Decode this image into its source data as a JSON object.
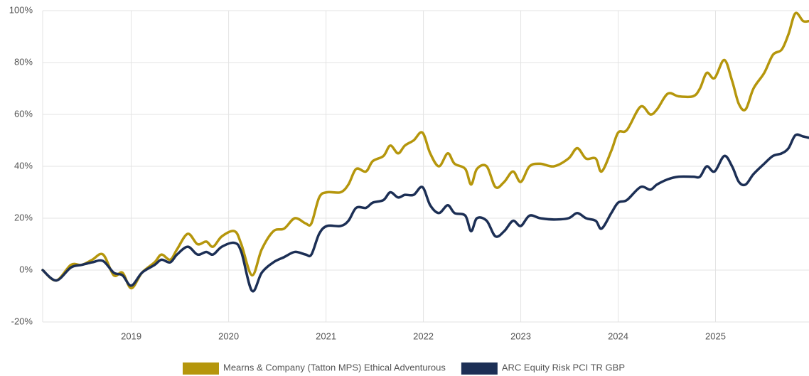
{
  "chart_data": {
    "type": "line",
    "x": [
      2018.09,
      2018.23,
      2018.38,
      2018.49,
      2018.6,
      2018.71,
      2018.82,
      2018.91,
      2019.0,
      2019.11,
      2019.24,
      2019.31,
      2019.4,
      2019.47,
      2019.58,
      2019.68,
      2019.77,
      2019.84,
      2019.93,
      2020.06,
      2020.13,
      2020.24,
      2020.34,
      2020.46,
      2020.57,
      2020.68,
      2020.79,
      2020.85,
      2020.93,
      2021.01,
      2021.15,
      2021.23,
      2021.31,
      2021.41,
      2021.48,
      2021.59,
      2021.66,
      2021.74,
      2021.81,
      2021.9,
      2021.99,
      2022.07,
      2022.16,
      2022.25,
      2022.32,
      2022.43,
      2022.49,
      2022.55,
      2022.65,
      2022.74,
      2022.83,
      2022.92,
      2023.0,
      2023.09,
      2023.2,
      2023.34,
      2023.49,
      2023.58,
      2023.67,
      2023.77,
      2023.83,
      2023.93,
      2024.0,
      2024.09,
      2024.23,
      2024.33,
      2024.4,
      2024.51,
      2024.62,
      2024.77,
      2024.84,
      2024.91,
      2024.99,
      2025.09,
      2025.17,
      2025.24,
      2025.31,
      2025.39,
      2025.5,
      2025.59,
      2025.68,
      2025.75,
      2025.82,
      2025.9,
      2025.96
    ],
    "series": [
      {
        "name": "Mearns & Company (Tatton MPS) Ethical Adventurous",
        "color": "#b5960c",
        "values": [
          0,
          -4,
          2,
          2,
          4,
          6,
          -2,
          -1,
          -7,
          -1,
          3,
          6,
          4,
          8,
          14,
          10,
          11,
          9,
          13,
          15,
          10,
          -2,
          8,
          15,
          16,
          20,
          18,
          18,
          28,
          30,
          30,
          33,
          39,
          38,
          42,
          44,
          48,
          45,
          48,
          50,
          53,
          45,
          40,
          45,
          41,
          39,
          33,
          39,
          40,
          32,
          34,
          38,
          34,
          40,
          41,
          40,
          43,
          47,
          43,
          43,
          38,
          46,
          53,
          54,
          63,
          60,
          62,
          68,
          67,
          67,
          70,
          76,
          74,
          81,
          73,
          64,
          62,
          70,
          76,
          83,
          85,
          91,
          99,
          96,
          96
        ]
      },
      {
        "name": "ARC Equity Risk PCI TR GBP",
        "color": "#1c2f55",
        "values": [
          0,
          -4,
          1,
          2,
          3,
          3.5,
          -1,
          -2,
          -6,
          -1,
          2,
          4,
          3,
          6,
          9,
          6,
          7,
          6,
          9,
          10.5,
          7,
          -8,
          -1,
          3,
          5,
          7,
          6,
          6,
          14,
          17,
          17,
          19,
          24,
          24,
          26,
          27,
          30,
          28,
          29,
          29,
          32,
          25,
          22,
          25,
          22,
          21,
          15,
          20,
          19,
          13,
          15,
          19,
          17,
          21,
          20,
          19.5,
          20,
          22,
          20,
          19,
          16,
          22,
          26,
          27,
          32,
          31,
          33,
          35,
          36,
          36,
          36,
          40,
          38,
          44,
          40,
          34,
          33,
          37,
          41,
          44,
          45,
          47,
          52,
          51.5,
          51
        ]
      }
    ],
    "xlim": [
      2018.09,
      2025.96
    ],
    "xticks": [
      2019,
      2020,
      2021,
      2022,
      2023,
      2024,
      2025
    ],
    "ylim": [
      -20,
      100
    ],
    "yticks": [
      {
        "value": -20,
        "label": "-20%"
      },
      {
        "value": 0,
        "label": "0%"
      },
      {
        "value": 20,
        "label": "20%"
      },
      {
        "value": 40,
        "label": "40%"
      },
      {
        "value": 60,
        "label": "60%"
      },
      {
        "value": 80,
        "label": "80%"
      },
      {
        "value": 100,
        "label": "100%"
      }
    ],
    "grid": true,
    "legend": "bottom"
  }
}
